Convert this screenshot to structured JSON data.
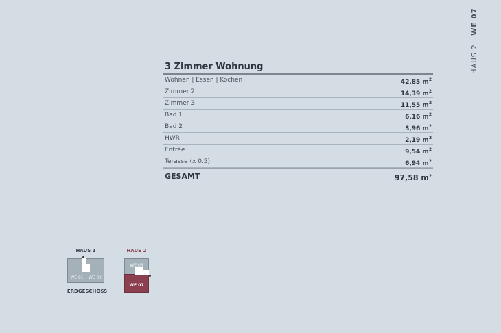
{
  "side_label": {
    "house": "HAUS 2",
    "sep": " | ",
    "unit": "WE 07"
  },
  "table": {
    "title": "3 Zimmer Wohnung",
    "rows": [
      {
        "label": "Wohnen | Essen | Kochen",
        "value": "42,85 m",
        "unit_sup": "2"
      },
      {
        "label": "Zimmer 2",
        "value": "14,39 m",
        "unit_sup": "2"
      },
      {
        "label": "Zimmer 3",
        "value": "11,55 m",
        "unit_sup": "2"
      },
      {
        "label": "Bad 1",
        "value": "6,16 m",
        "unit_sup": "2"
      },
      {
        "label": "Bad 2",
        "value": "3,96 m",
        "unit_sup": "2"
      },
      {
        "label": "HWR",
        "value": "2,19 m",
        "unit_sup": "2"
      },
      {
        "label": "Entrée",
        "value": "9,54 m",
        "unit_sup": "2"
      },
      {
        "label": "Terasse (x 0.5)",
        "value": "6,94 m",
        "unit_sup": "2"
      }
    ],
    "total": {
      "label": "GESAMT",
      "value": "97,58 m",
      "unit_sup": "2"
    }
  },
  "site_plan": {
    "haus1": {
      "label": "HAUS 1",
      "units": [
        "WE 01",
        "WE 02"
      ]
    },
    "haus2": {
      "label": "HAUS 2",
      "units": [
        "WE 06",
        "WE 07"
      ],
      "selected": "WE 07"
    },
    "floor": "ERDGESCHOSS",
    "colors": {
      "selected": "#8b3f4f",
      "building": "#a5b1b9",
      "haus2_label": "#8b3f4f"
    }
  }
}
